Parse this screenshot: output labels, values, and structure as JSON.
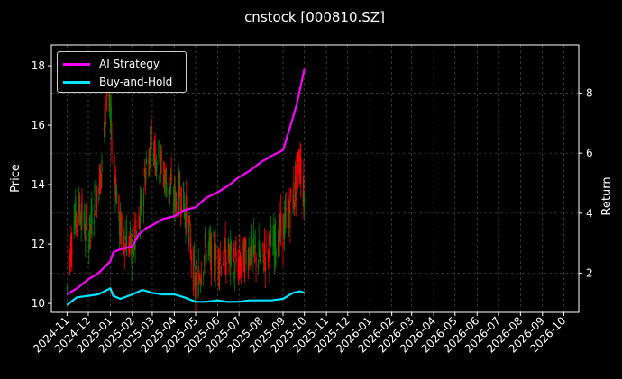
{
  "chart_data": {
    "type": "line",
    "title": "cnstock [000810.SZ]",
    "ylabel": "Price",
    "y2label": "Return",
    "ylim": [
      9.7,
      18.7
    ],
    "y2lim": [
      0.7,
      9.6
    ],
    "yticks": [
      10,
      12,
      14,
      16,
      18
    ],
    "y2ticks": [
      2,
      4,
      6,
      8
    ],
    "xticks": [
      "2024-11",
      "2024-12",
      "2025-01",
      "2025-02",
      "2025-03",
      "2025-04",
      "2025-05",
      "2025-06",
      "2025-07",
      "2025-08",
      "2025-09",
      "2025-10",
      "2025-11",
      "2025-12",
      "2026-01",
      "2026-02",
      "2026-03",
      "2026-04",
      "2026-05",
      "2026-06",
      "2026-07",
      "2026-08",
      "2026-09",
      "2026-10"
    ],
    "grid": true,
    "legend_position": "top-left",
    "colors": {
      "background": "#000000",
      "strategy": "#ff00ff",
      "buyhold": "#00e5ff",
      "up": "#008000",
      "down": "#ff0000"
    },
    "series": [
      {
        "name": "AI Strategy",
        "axis": "right",
        "x": [
          "2024-11-01",
          "2024-11-15",
          "2024-12-01",
          "2024-12-15",
          "2025-01-01",
          "2025-01-05",
          "2025-01-15",
          "2025-02-01",
          "2025-02-10",
          "2025-02-20",
          "2025-03-01",
          "2025-03-15",
          "2025-04-01",
          "2025-04-15",
          "2025-05-01",
          "2025-05-15",
          "2025-06-01",
          "2025-06-15",
          "2025-07-01",
          "2025-07-15",
          "2025-08-01",
          "2025-08-15",
          "2025-09-01",
          "2025-09-10",
          "2025-09-20",
          "2025-10-01"
        ],
        "values": [
          1.3,
          1.5,
          1.8,
          2.0,
          2.4,
          2.7,
          2.8,
          2.9,
          3.3,
          3.5,
          3.6,
          3.8,
          3.9,
          4.1,
          4.2,
          4.5,
          4.7,
          4.9,
          5.2,
          5.4,
          5.7,
          5.9,
          6.1,
          6.8,
          7.6,
          8.8
        ]
      },
      {
        "name": "Buy-and-Hold",
        "axis": "right",
        "x": [
          "2024-11-01",
          "2024-11-15",
          "2024-12-01",
          "2024-12-15",
          "2025-01-01",
          "2025-01-05",
          "2025-01-15",
          "2025-02-01",
          "2025-02-15",
          "2025-03-01",
          "2025-03-15",
          "2025-04-01",
          "2025-04-15",
          "2025-05-01",
          "2025-05-15",
          "2025-06-01",
          "2025-06-15",
          "2025-07-01",
          "2025-07-15",
          "2025-08-01",
          "2025-08-15",
          "2025-09-01",
          "2025-09-15",
          "2025-09-25",
          "2025-10-01"
        ],
        "values": [
          0.95,
          1.2,
          1.25,
          1.3,
          1.5,
          1.25,
          1.15,
          1.3,
          1.45,
          1.35,
          1.3,
          1.3,
          1.2,
          1.05,
          1.05,
          1.1,
          1.05,
          1.05,
          1.1,
          1.1,
          1.1,
          1.15,
          1.35,
          1.4,
          1.35
        ]
      },
      {
        "name": "Price",
        "axis": "left",
        "x": [
          "2024-11-01",
          "2024-11-10",
          "2024-11-20",
          "2024-12-01",
          "2024-12-10",
          "2024-12-20",
          "2024-12-28",
          "2025-01-05",
          "2025-01-15",
          "2025-02-01",
          "2025-02-10",
          "2025-02-20",
          "2025-03-01",
          "2025-03-15",
          "2025-04-01",
          "2025-04-10",
          "2025-04-20",
          "2025-05-01",
          "2025-05-15",
          "2025-06-01",
          "2025-06-15",
          "2025-07-01",
          "2025-07-15",
          "2025-08-01",
          "2025-08-15",
          "2025-09-01",
          "2025-09-15",
          "2025-09-25",
          "2025-10-01"
        ],
        "values": [
          10.5,
          12.8,
          13.2,
          12.0,
          13.5,
          14.5,
          17.5,
          15.0,
          12.5,
          11.8,
          12.5,
          14.5,
          15.5,
          14.5,
          13.5,
          13.8,
          12.8,
          10.5,
          11.8,
          11.5,
          11.6,
          11.2,
          11.8,
          11.5,
          11.9,
          12.5,
          13.5,
          14.8,
          13.5
        ]
      }
    ]
  }
}
